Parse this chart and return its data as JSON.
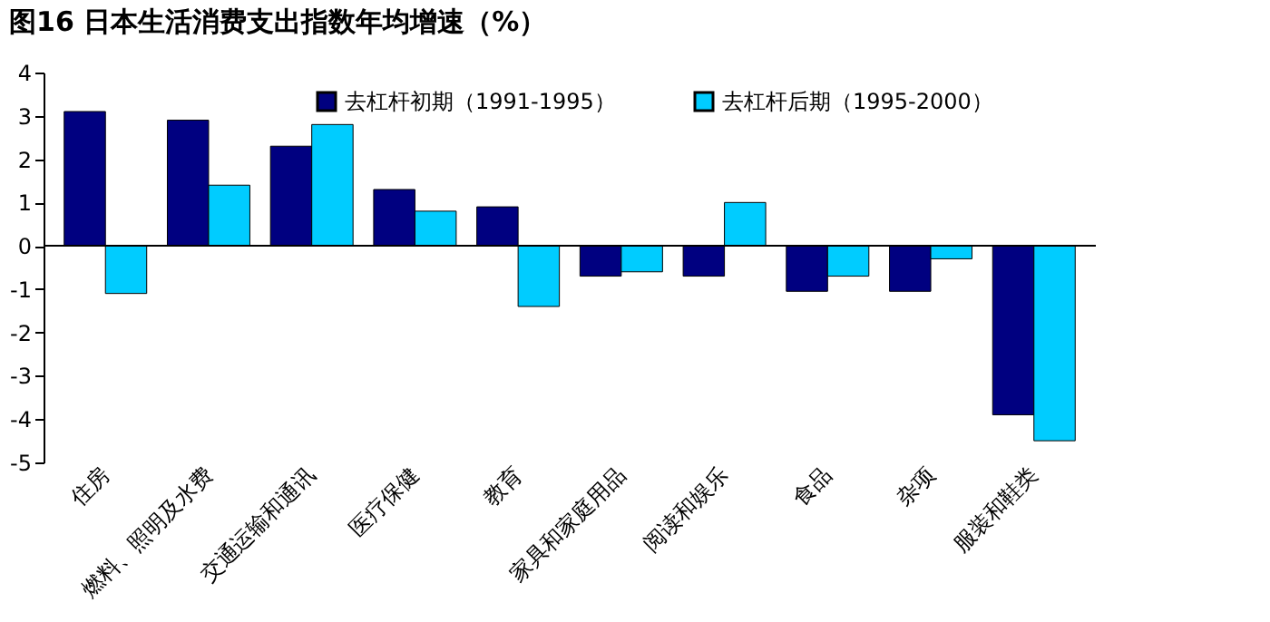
{
  "chart_data": {
    "type": "bar",
    "title": "图16 日本生活消费支出指数年均增速（%）",
    "categories": [
      "住房",
      "燃料、照明及水费",
      "交通运输和通讯",
      "医疗保健",
      "教育",
      "家具和家庭用品",
      "阅读和娱乐",
      "食品",
      "杂项",
      "服装和鞋类"
    ],
    "series": [
      {
        "name": "去杠杆初期（1991-1995）",
        "color": "#000080",
        "values": [
          3.1,
          2.9,
          2.3,
          1.3,
          0.9,
          -0.7,
          -0.7,
          -1.05,
          -1.05,
          -3.9
        ]
      },
      {
        "name": "去杠杆后期（1995-2000）",
        "color": "#00ccff",
        "values": [
          -1.1,
          1.4,
          2.8,
          0.8,
          -1.4,
          -0.6,
          1.0,
          -0.7,
          -0.3,
          -4.5
        ]
      }
    ],
    "ylim": [
      -5,
      4
    ],
    "yticks": [
      -5,
      -4,
      -3,
      -2,
      -1,
      0,
      1,
      2,
      3,
      4
    ],
    "ref_lines": [
      {
        "axis": "y",
        "value": 0,
        "color": "#000000"
      }
    ],
    "grid": false,
    "legend": "top"
  }
}
